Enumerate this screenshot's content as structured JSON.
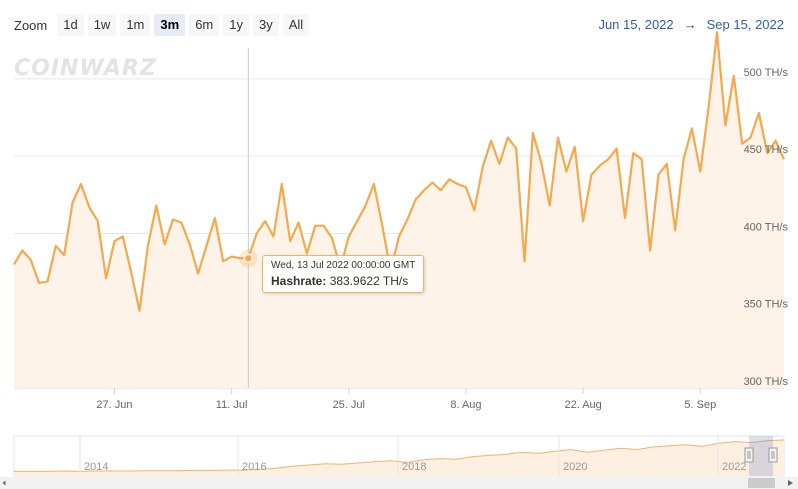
{
  "toolbar": {
    "zoom_label": "Zoom",
    "buttons": [
      "1d",
      "1w",
      "1m",
      "3m",
      "6m",
      "1y",
      "3y",
      "All"
    ],
    "active": "3m"
  },
  "range": {
    "from": "Jun 15, 2022",
    "arrow": "→",
    "to": "Sep 15, 2022"
  },
  "watermark": "COINWARZ",
  "tooltip": {
    "date": "Wed, 13 Jul 2022 00:00:00 GMT",
    "series_name": "Hashrate:",
    "value": "383.9622 TH/s"
  },
  "colors": {
    "line": "#f4a94e",
    "fill": "#fdf3e8",
    "active_button": "#e6ebf5",
    "range_text": "#335cad"
  },
  "navigator": {
    "year_labels": [
      "2014",
      "2016",
      "2018",
      "2020",
      "2022"
    ],
    "series": [
      0.02,
      0.02,
      0.02,
      0.03,
      0.02,
      0.03,
      0.03,
      0.03,
      0.04,
      0.04,
      0.04,
      0.05,
      0.05,
      0.06,
      0.06,
      0.08,
      0.12,
      0.18,
      0.22,
      0.26,
      0.24,
      0.28,
      0.32,
      0.35,
      0.3,
      0.38,
      0.42,
      0.4,
      0.48,
      0.52,
      0.55,
      0.62,
      0.58,
      0.65,
      0.7,
      0.62,
      0.68,
      0.74,
      0.7,
      0.78,
      0.82,
      0.85,
      0.8,
      0.9,
      0.95,
      0.92,
      0.98,
      1.0
    ]
  },
  "chart_data": {
    "type": "area",
    "title": "",
    "series": [
      {
        "name": "Hashrate",
        "unit": "TH/s",
        "x": [
          "2022-06-15",
          "2022-06-16",
          "2022-06-17",
          "2022-06-18",
          "2022-06-19",
          "2022-06-20",
          "2022-06-21",
          "2022-06-22",
          "2022-06-23",
          "2022-06-24",
          "2022-06-25",
          "2022-06-26",
          "2022-06-27",
          "2022-06-28",
          "2022-06-29",
          "2022-06-30",
          "2022-07-01",
          "2022-07-02",
          "2022-07-03",
          "2022-07-04",
          "2022-07-05",
          "2022-07-06",
          "2022-07-07",
          "2022-07-08",
          "2022-07-09",
          "2022-07-10",
          "2022-07-11",
          "2022-07-12",
          "2022-07-13",
          "2022-07-14",
          "2022-07-15",
          "2022-07-16",
          "2022-07-17",
          "2022-07-18",
          "2022-07-19",
          "2022-07-20",
          "2022-07-21",
          "2022-07-22",
          "2022-07-23",
          "2022-07-24",
          "2022-07-25",
          "2022-07-26",
          "2022-07-27",
          "2022-07-28",
          "2022-07-29",
          "2022-07-30",
          "2022-07-31",
          "2022-08-01",
          "2022-08-02",
          "2022-08-03",
          "2022-08-04",
          "2022-08-05",
          "2022-08-06",
          "2022-08-07",
          "2022-08-08",
          "2022-08-09",
          "2022-08-10",
          "2022-08-11",
          "2022-08-12",
          "2022-08-13",
          "2022-08-14",
          "2022-08-15",
          "2022-08-16",
          "2022-08-17",
          "2022-08-18",
          "2022-08-19",
          "2022-08-20",
          "2022-08-21",
          "2022-08-22",
          "2022-08-23",
          "2022-08-24",
          "2022-08-25",
          "2022-08-26",
          "2022-08-27",
          "2022-08-28",
          "2022-08-29",
          "2022-08-30",
          "2022-08-31",
          "2022-09-01",
          "2022-09-02",
          "2022-09-03",
          "2022-09-04",
          "2022-09-05",
          "2022-09-06",
          "2022-09-07",
          "2022-09-08",
          "2022-09-09",
          "2022-09-10",
          "2022-09-11",
          "2022-09-12",
          "2022-09-13",
          "2022-09-14",
          "2022-09-15"
        ],
        "values": [
          380,
          389,
          383,
          368,
          369,
          392,
          386,
          420,
          432,
          417,
          408,
          371,
          395,
          398,
          375,
          350,
          392,
          418,
          393,
          409,
          407,
          393,
          374,
          392,
          410,
          382,
          385,
          384,
          384,
          400,
          408,
          398,
          432,
          395,
          407,
          387,
          405,
          405,
          397,
          378,
          398,
          408,
          418,
          432,
          405,
          376,
          398,
          409,
          422,
          428,
          433,
          428,
          435,
          432,
          430,
          415,
          443,
          460,
          445,
          462,
          455,
          382,
          465,
          446,
          418,
          462,
          440,
          456,
          408,
          438,
          444,
          448,
          455,
          410,
          452,
          448,
          389,
          438,
          445,
          402,
          448,
          468,
          440,
          482,
          530,
          470,
          502,
          458,
          462,
          478,
          452,
          460,
          448
        ]
      }
    ],
    "yticks": [
      "300 TH/s",
      "350 TH/s",
      "400 TH/s",
      "450 TH/s",
      "500 TH/s"
    ],
    "ylim": [
      300,
      520
    ],
    "xticks": [
      {
        "label": "27. Jun",
        "date": "2022-06-27"
      },
      {
        "label": "11. Jul",
        "date": "2022-07-11"
      },
      {
        "label": "25. Jul",
        "date": "2022-07-25"
      },
      {
        "label": "8. Aug",
        "date": "2022-08-08"
      },
      {
        "label": "22. Aug",
        "date": "2022-08-22"
      },
      {
        "label": "5. Sep",
        "date": "2022-09-05"
      }
    ],
    "grid": true,
    "highlight": {
      "date": "2022-07-13",
      "value": 383.9622
    }
  }
}
